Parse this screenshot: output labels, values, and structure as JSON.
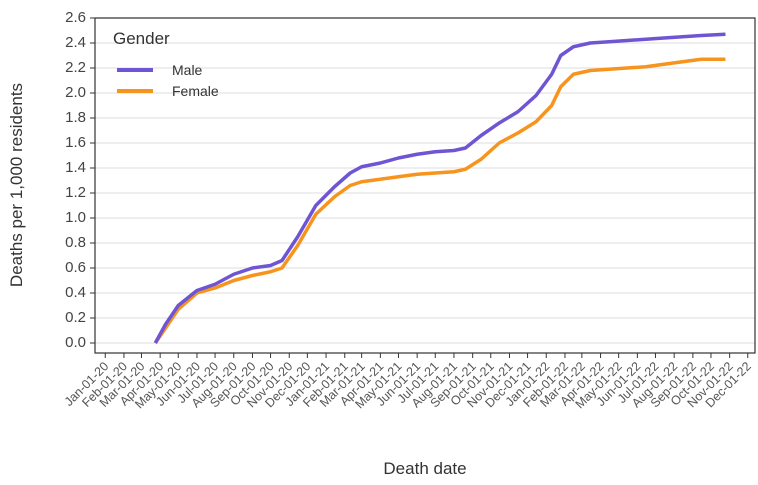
{
  "chart_data": {
    "type": "line",
    "x_label": "Death date",
    "y_label": "Deaths per 1,000 residents",
    "legend_title": "Gender",
    "legend_position": "top-left",
    "grid": true,
    "x": [
      "2020-03-24",
      "2020-04-10",
      "2020-05-01",
      "2020-06-01",
      "2020-07-01",
      "2020-08-01",
      "2020-09-01",
      "2020-10-01",
      "2020-10-20",
      "2020-11-15",
      "2020-12-15",
      "2021-01-15",
      "2021-02-10",
      "2021-03-01",
      "2021-04-01",
      "2021-05-01",
      "2021-06-01",
      "2021-07-01",
      "2021-08-01",
      "2021-08-20",
      "2021-09-15",
      "2021-10-15",
      "2021-11-15",
      "2021-12-15",
      "2022-01-10",
      "2022-01-25",
      "2022-02-15",
      "2022-03-15",
      "2022-04-15",
      "2022-05-15",
      "2022-06-15",
      "2022-07-15",
      "2022-08-15",
      "2022-09-15",
      "2022-10-25"
    ],
    "series": [
      {
        "name": "Male",
        "color": "#6f55d3",
        "values": [
          0,
          0.15,
          0.3,
          0.42,
          0.47,
          0.55,
          0.6,
          0.62,
          0.66,
          0.85,
          1.1,
          1.25,
          1.36,
          1.41,
          1.44,
          1.48,
          1.51,
          1.53,
          1.54,
          1.56,
          1.66,
          1.76,
          1.85,
          1.98,
          2.15,
          2.3,
          2.37,
          2.4,
          2.41,
          2.42,
          2.43,
          2.44,
          2.45,
          2.46,
          2.47
        ]
      },
      {
        "name": "Female",
        "color": "#f7941d",
        "values": [
          0,
          0.12,
          0.27,
          0.4,
          0.44,
          0.5,
          0.54,
          0.57,
          0.6,
          0.78,
          1.03,
          1.17,
          1.26,
          1.29,
          1.31,
          1.33,
          1.35,
          1.36,
          1.37,
          1.39,
          1.47,
          1.6,
          1.68,
          1.77,
          1.9,
          2.05,
          2.15,
          2.18,
          2.19,
          2.2,
          2.21,
          2.23,
          2.25,
          2.27,
          2.27
        ]
      }
    ],
    "xlim": [
      "2019-12-15",
      "2022-12-13"
    ],
    "xticks": [
      {
        "value": "2020-01-01",
        "label": "Jan-01-20"
      },
      {
        "value": "2020-02-01",
        "label": "Feb-01-20"
      },
      {
        "value": "2020-03-01",
        "label": "Mar-01-20"
      },
      {
        "value": "2020-04-01",
        "label": "Apr-01-20"
      },
      {
        "value": "2020-05-01",
        "label": "May-01-20"
      },
      {
        "value": "2020-06-01",
        "label": "Jun-01-20"
      },
      {
        "value": "2020-07-01",
        "label": "Jul-01-20"
      },
      {
        "value": "2020-08-01",
        "label": "Aug-01-20"
      },
      {
        "value": "2020-09-01",
        "label": "Sep-01-20"
      },
      {
        "value": "2020-10-01",
        "label": "Oct-01-20"
      },
      {
        "value": "2020-11-01",
        "label": "Nov-01-20"
      },
      {
        "value": "2020-12-01",
        "label": "Dec-01-20"
      },
      {
        "value": "2021-01-01",
        "label": "Jan-01-21"
      },
      {
        "value": "2021-02-01",
        "label": "Feb-01-21"
      },
      {
        "value": "2021-03-01",
        "label": "Mar-01-21"
      },
      {
        "value": "2021-04-01",
        "label": "Apr-01-21"
      },
      {
        "value": "2021-05-01",
        "label": "May-01-21"
      },
      {
        "value": "2021-06-01",
        "label": "Jun-01-21"
      },
      {
        "value": "2021-07-01",
        "label": "Jul-01-21"
      },
      {
        "value": "2021-08-01",
        "label": "Aug-01-21"
      },
      {
        "value": "2021-09-01",
        "label": "Sep-01-21"
      },
      {
        "value": "2021-10-01",
        "label": "Oct-01-21"
      },
      {
        "value": "2021-11-01",
        "label": "Nov-01-21"
      },
      {
        "value": "2021-12-01",
        "label": "Dec-01-21"
      },
      {
        "value": "2022-01-01",
        "label": "Jan-01-22"
      },
      {
        "value": "2022-02-01",
        "label": "Feb-01-22"
      },
      {
        "value": "2022-03-01",
        "label": "Mar-01-22"
      },
      {
        "value": "2022-04-01",
        "label": "Apr-01-22"
      },
      {
        "value": "2022-05-01",
        "label": "May-01-22"
      },
      {
        "value": "2022-06-01",
        "label": "Jun-01-22"
      },
      {
        "value": "2022-07-01",
        "label": "Jul-01-22"
      },
      {
        "value": "2022-08-01",
        "label": "Aug-01-22"
      },
      {
        "value": "2022-09-01",
        "label": "Sep-01-22"
      },
      {
        "value": "2022-10-01",
        "label": "Oct-01-22"
      },
      {
        "value": "2022-11-01",
        "label": "Nov-01-22"
      },
      {
        "value": "2022-12-01",
        "label": "Dec-01-22"
      }
    ],
    "ylim": [
      -0.08,
      2.6
    ],
    "yticks": [
      {
        "value": 0,
        "label": "0.0"
      },
      0.2,
      0.4,
      0.6,
      0.8,
      {
        "value": 1,
        "label": "1.0"
      },
      1.2,
      1.4,
      1.6,
      1.8,
      {
        "value": 2,
        "label": "2.0"
      },
      2.2,
      2.4,
      2.6
    ]
  }
}
